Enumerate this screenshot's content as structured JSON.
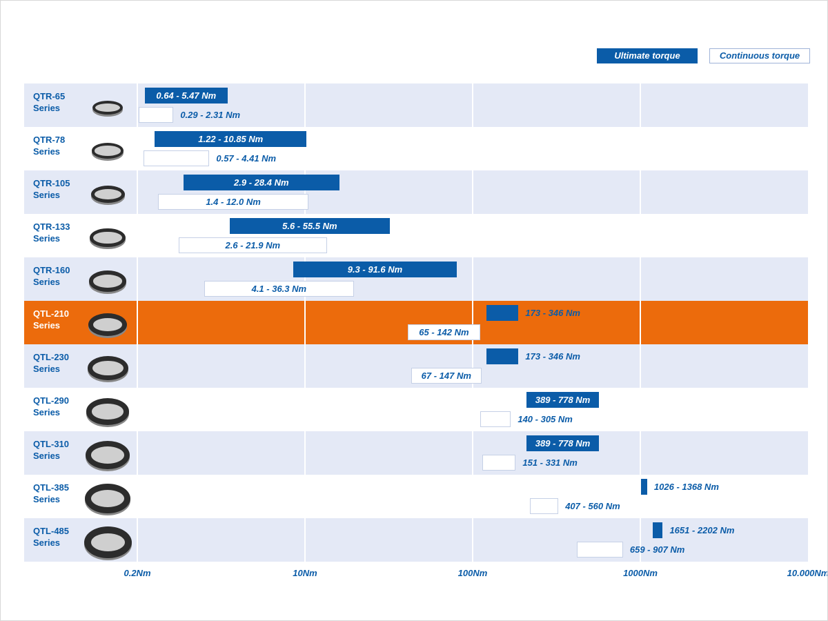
{
  "chart_data": {
    "type": "range_bar",
    "categories": [
      "QTR-65 Series",
      "QTR-78 Series",
      "QTR-105 Series",
      "QTR-133 Series",
      "QTR-160 Series",
      "QTL-210 Series",
      "QTL-230 Series",
      "QTL-290 Series",
      "QTL-310 Series",
      "QTL-385 Series",
      "QTL-485 Series"
    ],
    "series": [
      {
        "name": "Ultimate torque",
        "color": "#0b5ca8",
        "low": [
          0.64,
          1.22,
          2.9,
          5.6,
          9.3,
          173,
          173,
          389,
          389,
          1026,
          1651
        ],
        "high": [
          5.47,
          10.85,
          28.4,
          55.5,
          91.6,
          346,
          346,
          778,
          778,
          1368,
          2202
        ],
        "value_labels": [
          "0.64 - 5.47 Nm",
          "1.22 - 10.85 Nm",
          "2.9 - 28.4 Nm",
          "5.6 - 55.5 Nm",
          "9.3 - 91.6 Nm",
          "173 - 346 Nm",
          "173 - 346 Nm",
          "389 - 778 Nm",
          "389 - 778 Nm",
          "1026 - 1368 Nm",
          "1651 - 2202 Nm"
        ]
      },
      {
        "name": "Continuous torque",
        "color": "#ffffff",
        "low": [
          0.29,
          0.57,
          1.4,
          2.6,
          4.1,
          65,
          67,
          140,
          151,
          407,
          659
        ],
        "high": [
          2.31,
          4.41,
          12.0,
          21.9,
          36.3,
          142,
          147,
          305,
          331,
          560,
          907
        ],
        "value_labels": [
          "0.29 - 2.31 Nm",
          "0.57 - 4.41 Nm",
          "1.4 - 12.0 Nm",
          "2.6 - 21.9 Nm",
          "4.1 - 36.3 Nm",
          "65 - 142 Nm",
          "67 - 147 Nm",
          "140 - 305 Nm",
          "151 - 331 Nm",
          "407 - 560 Nm",
          "659 - 907 Nm"
        ]
      }
    ],
    "xlim": [
      0.2,
      10000
    ],
    "xticks": [
      {
        "value": 0.2,
        "label": "0.2Nm"
      },
      {
        "value": 10,
        "label": "10Nm"
      },
      {
        "value": 100,
        "label": "100Nm"
      },
      {
        "value": 1000,
        "label": "1000Nm"
      },
      {
        "value": 10000,
        "label": "10.000Nm"
      }
    ],
    "grid": true,
    "legend": "top-right",
    "highlight_index": 5,
    "highlight_color": "#ec6b0c"
  }
}
